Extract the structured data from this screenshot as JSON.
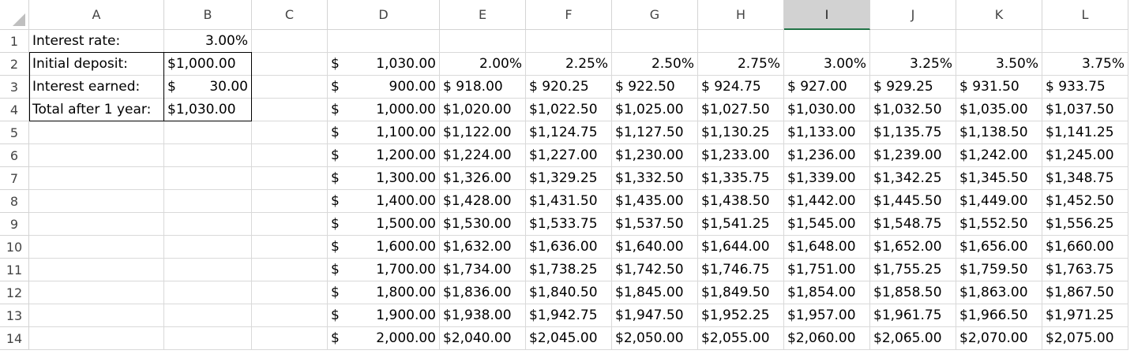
{
  "columns": [
    "A",
    "B",
    "C",
    "D",
    "E",
    "F",
    "G",
    "H",
    "I",
    "J",
    "K",
    "L"
  ],
  "selected_column": "I",
  "rows": [
    "1",
    "2",
    "3",
    "4",
    "5",
    "6",
    "7",
    "8",
    "9",
    "10",
    "11",
    "12",
    "13",
    "14"
  ],
  "labels": {
    "interest_rate_label": "Interest rate:",
    "initial_deposit_label": "Initial deposit:",
    "interest_earned_label": "Interest earned:",
    "total_label": "Total after 1 year:"
  },
  "values": {
    "interest_rate": "3.00%",
    "initial_deposit": "$1,000.00",
    "interest_earned_symbol": "$",
    "interest_earned_amount": "30.00",
    "total": "$1,030.00"
  },
  "table": {
    "corner_symbol": "$",
    "corner_amount": "1,030.00",
    "rate_headers": [
      "2.00%",
      "2.25%",
      "2.50%",
      "2.75%",
      "3.00%",
      "3.25%",
      "3.50%",
      "3.75%"
    ],
    "deposit_symbol": "$",
    "deposits": [
      "900.00",
      "1,000.00",
      "1,100.00",
      "1,200.00",
      "1,300.00",
      "1,400.00",
      "1,500.00",
      "1,600.00",
      "1,700.00",
      "1,800.00",
      "1,900.00",
      "2,000.00"
    ],
    "results": [
      [
        "$ 918.00",
        "$ 920.25",
        "$ 922.50",
        "$ 924.75",
        "$ 927.00",
        "$ 929.25",
        "$ 931.50",
        "$ 933.75"
      ],
      [
        "$1,020.00",
        "$1,022.50",
        "$1,025.00",
        "$1,027.50",
        "$1,030.00",
        "$1,032.50",
        "$1,035.00",
        "$1,037.50"
      ],
      [
        "$1,122.00",
        "$1,124.75",
        "$1,127.50",
        "$1,130.25",
        "$1,133.00",
        "$1,135.75",
        "$1,138.50",
        "$1,141.25"
      ],
      [
        "$1,224.00",
        "$1,227.00",
        "$1,230.00",
        "$1,233.00",
        "$1,236.00",
        "$1,239.00",
        "$1,242.00",
        "$1,245.00"
      ],
      [
        "$1,326.00",
        "$1,329.25",
        "$1,332.50",
        "$1,335.75",
        "$1,339.00",
        "$1,342.25",
        "$1,345.50",
        "$1,348.75"
      ],
      [
        "$1,428.00",
        "$1,431.50",
        "$1,435.00",
        "$1,438.50",
        "$1,442.00",
        "$1,445.50",
        "$1,449.00",
        "$1,452.50"
      ],
      [
        "$1,530.00",
        "$1,533.75",
        "$1,537.50",
        "$1,541.25",
        "$1,545.00",
        "$1,548.75",
        "$1,552.50",
        "$1,556.25"
      ],
      [
        "$1,632.00",
        "$1,636.00",
        "$1,640.00",
        "$1,644.00",
        "$1,648.00",
        "$1,652.00",
        "$1,656.00",
        "$1,660.00"
      ],
      [
        "$1,734.00",
        "$1,738.25",
        "$1,742.50",
        "$1,746.75",
        "$1,751.00",
        "$1,755.25",
        "$1,759.50",
        "$1,763.75"
      ],
      [
        "$1,836.00",
        "$1,840.50",
        "$1,845.00",
        "$1,849.50",
        "$1,854.00",
        "$1,858.50",
        "$1,863.00",
        "$1,867.50"
      ],
      [
        "$1,938.00",
        "$1,942.75",
        "$1,947.50",
        "$1,952.25",
        "$1,957.00",
        "$1,961.75",
        "$1,966.50",
        "$1,971.25"
      ],
      [
        "$2,040.00",
        "$2,045.00",
        "$2,050.00",
        "$2,055.00",
        "$2,060.00",
        "$2,065.00",
        "$2,070.00",
        "$2,075.00"
      ]
    ]
  }
}
